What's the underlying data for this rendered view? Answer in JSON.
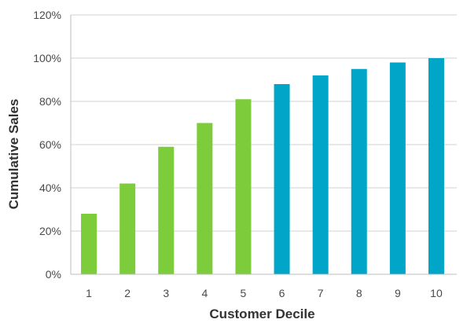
{
  "chart_data": {
    "type": "bar",
    "categories": [
      "1",
      "2",
      "3",
      "4",
      "5",
      "6",
      "7",
      "8",
      "9",
      "10"
    ],
    "values": [
      28,
      42,
      59,
      70,
      81,
      88,
      92,
      95,
      98,
      100
    ],
    "value_unit": "%",
    "title": "",
    "xlabel": "Customer Decile",
    "ylabel": "Cumulative Sales",
    "ylim": [
      0,
      120
    ],
    "yticks": [
      "0%",
      "20%",
      "40%",
      "60%",
      "80%",
      "100%",
      "120%"
    ],
    "ytick_values": [
      0,
      20,
      40,
      60,
      80,
      100,
      120
    ],
    "grid": true,
    "legend": "none",
    "bar_colors": [
      "#7ccc3b",
      "#7ccc3b",
      "#7ccc3b",
      "#7ccc3b",
      "#7ccc3b",
      "#00a5c8",
      "#00a5c8",
      "#00a5c8",
      "#00a5c8",
      "#00a5c8"
    ]
  }
}
